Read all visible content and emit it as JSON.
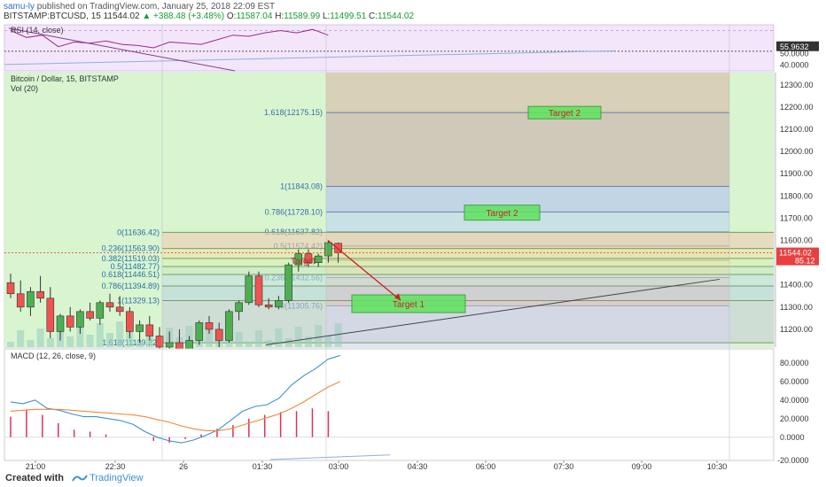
{
  "header": {
    "user": "samu-ly",
    "published_text": " published on TradingView.com, January 25, 2018 22:09 EST",
    "symbol_line": "BITSTAMP:BTCUSD, 15  11544.02",
    "change": "▲ +388.48 (+3.48%)",
    "o_label": " O:",
    "o_value": "11587.04",
    "h_label": " H:",
    "h_value": "11589.99",
    "l_label": " L:",
    "l_value": "11499.51",
    "c_label": " C:",
    "c_value": "11544.02"
  },
  "footer": {
    "created_with": "Created with",
    "brand": "TradingView"
  },
  "colors": {
    "up": "#4caf50",
    "down": "#ef5350",
    "rsi_line": "#9c2a8c",
    "macd_line": "#3a8fd8",
    "signal_line": "#f08a3c",
    "hist": "#e0305a",
    "target_fill": "#5ee35e",
    "target_text": "#c0282a"
  },
  "chart_data": [
    {
      "id": "main",
      "type": "candlestick",
      "title": "Bitcoin / Dollar, 15, BITSTAMP",
      "volume_label": "Vol (20)",
      "ylim": [
        11120,
        12355
      ],
      "y_ticks": [
        11200,
        11300,
        11400,
        11500,
        11600,
        11700,
        11800,
        11900,
        12000,
        12100,
        12200,
        12300
      ],
      "y_tick_labels": [
        "11200.00",
        "11300.00",
        "11400.00",
        "11500.00",
        "11600.00",
        "11700.00",
        "11800.00",
        "11900.00",
        "12000.00",
        "12100.00",
        "12200.00",
        "12300.00"
      ],
      "last_price_label": "11544.02",
      "second_price_label": "85.12",
      "x_ticks": [
        "21:00",
        "22:30",
        "26",
        "01:30",
        "03:00",
        "04:30",
        "06:00",
        "07:30",
        "09:00",
        "10:30"
      ],
      "candles": [
        [
          11410,
          11450,
          11340,
          11360
        ],
        [
          11360,
          11420,
          11280,
          11300
        ],
        [
          11300,
          11390,
          11260,
          11370
        ],
        [
          11370,
          11440,
          11320,
          11340
        ],
        [
          11340,
          11390,
          11160,
          11190
        ],
        [
          11190,
          11270,
          11150,
          11260
        ],
        [
          11260,
          11300,
          11190,
          11210
        ],
        [
          11210,
          11290,
          11180,
          11280
        ],
        [
          11280,
          11320,
          11240,
          11250
        ],
        [
          11250,
          11330,
          11220,
          11320
        ],
        [
          11320,
          11360,
          11280,
          11300
        ],
        [
          11300,
          11350,
          11260,
          11280
        ],
        [
          11280,
          11300,
          11160,
          11190
        ],
        [
          11190,
          11240,
          11140,
          11220
        ],
        [
          11220,
          11260,
          11150,
          11170
        ],
        [
          11170,
          11210,
          11100,
          11120
        ],
        [
          11120,
          11190,
          11080,
          11140
        ],
        [
          11140,
          11200,
          11090,
          11110
        ],
        [
          11110,
          11170,
          11080,
          11150
        ],
        [
          11150,
          11240,
          11130,
          11230
        ],
        [
          11230,
          11260,
          11180,
          11200
        ],
        [
          11200,
          11230,
          11120,
          11150
        ],
        [
          11150,
          11290,
          11140,
          11280
        ],
        [
          11280,
          11330,
          11240,
          11320
        ],
        [
          11320,
          11460,
          11310,
          11440
        ],
        [
          11440,
          11460,
          11300,
          11310
        ],
        [
          11310,
          11340,
          11290,
          11300
        ],
        [
          11300,
          11350,
          11290,
          11330
        ],
        [
          11330,
          11500,
          11320,
          11490
        ],
        [
          11490,
          11560,
          11460,
          11540
        ],
        [
          11540,
          11560,
          11480,
          11500
        ],
        [
          11500,
          11540,
          11480,
          11530
        ],
        [
          11530,
          11600,
          11500,
          11590
        ],
        [
          11587.04,
          11589.99,
          11499.51,
          11544.02
        ]
      ],
      "fib_left": {
        "levels": [
          {
            "ratio": "0",
            "value": 11636.42,
            "label": "0(11636.42)"
          },
          {
            "ratio": "0.236",
            "value": 11563.9,
            "label": "0.236(11563.90)"
          },
          {
            "ratio": "0.382",
            "value": 11519.03,
            "label": "0.382(11519.03)"
          },
          {
            "ratio": "0.5",
            "value": 11482.77,
            "label": "0.5(11482.77)"
          },
          {
            "ratio": "0.618",
            "value": 11446.51,
            "label": "0.618(11446.51)"
          },
          {
            "ratio": "0.786",
            "value": 11394.89,
            "label": "0.786(11394.89)"
          },
          {
            "ratio": "1",
            "value": 11329.13,
            "label": "1(11329.13)"
          },
          {
            "ratio": "1.618",
            "value": 11139.22,
            "label": "1.618(11139.22)"
          }
        ]
      },
      "fib_right": {
        "levels": [
          {
            "ratio": "1.618",
            "value": 12175.15,
            "label": "1.618(12175.15)"
          },
          {
            "ratio": "1",
            "value": 11843.08,
            "label": "1(11843.08)"
          },
          {
            "ratio": "0.786",
            "value": 11728.1,
            "label": "0.786(11728.10)"
          },
          {
            "ratio": "0.618",
            "value": 11637.82,
            "label": "0.618(11637.82)"
          },
          {
            "ratio": "0.5",
            "value": 11574.42,
            "label": "0.5(11574.42)"
          },
          {
            "ratio": "0.382",
            "value": 11511.02,
            "label": "0.382(11"
          },
          {
            "ratio": "0.236",
            "value": 11432.56,
            "label": "0.236(11432.56)"
          },
          {
            "ratio": "0",
            "value": 11305.76,
            "label": "0(11305.76)"
          }
        ]
      },
      "targets": [
        {
          "label": "Target 2",
          "value": 12175
        },
        {
          "label": "Target 2",
          "value": 11725
        },
        {
          "label": "Target 1",
          "value": 11315
        },
        {
          "label": "Target",
          "value": 11510
        }
      ]
    },
    {
      "id": "rsi",
      "type": "line",
      "title": "RSI (14, close)",
      "ylim": [
        35,
        75
      ],
      "y_tick_labels": [
        "50.0000",
        "40.0000"
      ],
      "y_ticks": [
        50,
        40
      ],
      "current_label": "55.9632",
      "values": [
        70,
        64,
        66,
        56,
        60,
        59,
        61,
        58,
        57,
        55,
        60,
        59,
        58,
        62,
        66,
        65,
        68,
        70,
        68,
        71,
        66
      ]
    },
    {
      "id": "macd",
      "type": "line",
      "title": "MACD (12, 26, close, 9)",
      "ylim": [
        -25,
        95
      ],
      "y_ticks": [
        80,
        60,
        40,
        20,
        0
      ],
      "y_tick_labels": [
        "80.0000",
        "60.0000",
        "40.0000",
        "20.0000",
        "0.0000"
      ],
      "bottom_tick_label": "-20.0000",
      "macd": [
        38,
        36,
        40,
        31,
        29,
        25,
        22,
        22,
        20,
        18,
        14,
        6,
        0,
        -4,
        -6,
        -3,
        2,
        8,
        18,
        28,
        33,
        35,
        42,
        56,
        66,
        74,
        84,
        88
      ],
      "signal": [
        28,
        29,
        30,
        30,
        30,
        29,
        28,
        27,
        26,
        25,
        24,
        22,
        19,
        16,
        12,
        9,
        7,
        7,
        9,
        13,
        17,
        21,
        25,
        31,
        38,
        46,
        54,
        60
      ],
      "histogram": [
        22,
        30,
        24,
        15,
        8,
        6,
        3,
        0,
        0,
        -4,
        -6,
        -2,
        3,
        9,
        13,
        20,
        24,
        27,
        28,
        31,
        28
      ]
    }
  ]
}
